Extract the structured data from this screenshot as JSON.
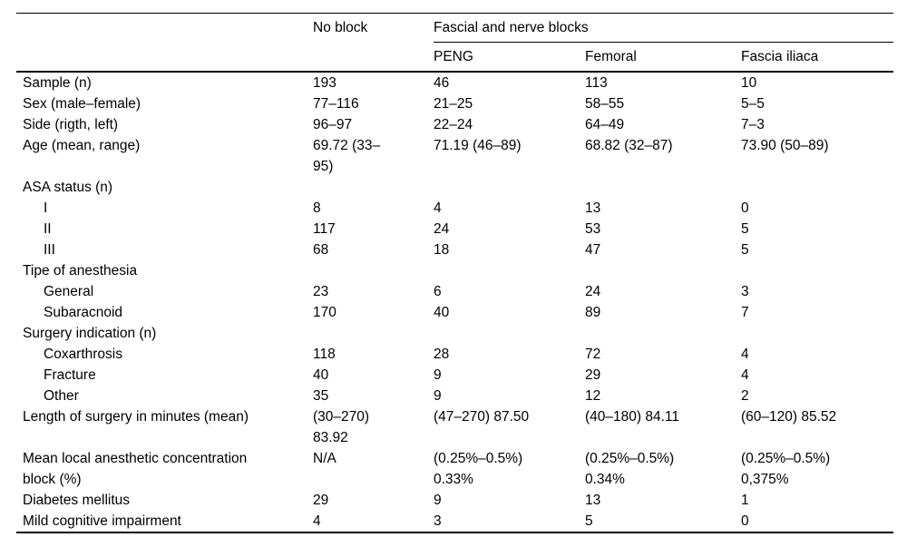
{
  "table": {
    "header": {
      "no_block": "No block",
      "group": "Fascial and nerve blocks",
      "subcols": [
        "PENG",
        "Femoral",
        "Fascia iliaca"
      ]
    },
    "rows": [
      {
        "label": "Sample (n)",
        "indent": false,
        "values": [
          "193",
          "46",
          "113",
          "10"
        ]
      },
      {
        "label": "Sex (male–female)",
        "indent": false,
        "values": [
          "77–116",
          "21–25",
          "58–55",
          "5–5"
        ]
      },
      {
        "label": "Side (rigth, left)",
        "indent": false,
        "values": [
          "96–97",
          "22–24",
          "64–49",
          "7–3"
        ]
      },
      {
        "label": "Age (mean, range)",
        "indent": false,
        "values": [
          "69.72 (33–\n95)",
          "71.19 (46–89)",
          "68.82 (32–87)",
          "73.90 (50–89)"
        ]
      },
      {
        "label": "ASA status (n)",
        "indent": false,
        "values": [
          "",
          "",
          "",
          ""
        ]
      },
      {
        "label": "I",
        "indent": true,
        "values": [
          "8",
          "4",
          "13",
          "0"
        ]
      },
      {
        "label": "II",
        "indent": true,
        "values": [
          "117",
          "24",
          "53",
          "5"
        ]
      },
      {
        "label": "III",
        "indent": true,
        "values": [
          "68",
          "18",
          "47",
          "5"
        ]
      },
      {
        "label": "Tipe of anesthesia",
        "indent": false,
        "values": [
          "",
          "",
          "",
          ""
        ]
      },
      {
        "label": "General",
        "indent": true,
        "values": [
          "23",
          "6",
          "24",
          "3"
        ]
      },
      {
        "label": "Subaracnoid",
        "indent": true,
        "values": [
          "170",
          "40",
          "89",
          "7"
        ]
      },
      {
        "label": "Surgery indication (n)",
        "indent": false,
        "values": [
          "",
          "",
          "",
          ""
        ]
      },
      {
        "label": "Coxarthrosis",
        "indent": true,
        "values": [
          "118",
          "28",
          "72",
          "4"
        ]
      },
      {
        "label": "Fracture",
        "indent": true,
        "values": [
          "40",
          "9",
          "29",
          "4"
        ]
      },
      {
        "label": "Other",
        "indent": true,
        "values": [
          "35",
          "9",
          "12",
          "2"
        ]
      },
      {
        "label": "Length of surgery in minutes (mean)",
        "indent": false,
        "values": [
          "(30–270)\n83.92",
          "(47–270) 87.50",
          "(40–180) 84.11",
          "(60–120) 85.52"
        ]
      },
      {
        "label": "Mean local anesthetic concentration\nblock (%)",
        "indent": false,
        "values": [
          "N/A",
          "(0.25%–0.5%)\n0.33%",
          "(0.25%–0.5%)\n0.34%",
          "(0.25%–0.5%)\n0,375%"
        ]
      },
      {
        "label": "Diabetes mellitus",
        "indent": false,
        "values": [
          "29",
          "9",
          "13",
          "1"
        ]
      },
      {
        "label": "Mild cognitive impairment",
        "indent": false,
        "values": [
          "4",
          "3",
          "5",
          "0"
        ]
      }
    ],
    "colors": {
      "text": "#000000",
      "background": "#ffffff",
      "rule": "#000000"
    }
  }
}
